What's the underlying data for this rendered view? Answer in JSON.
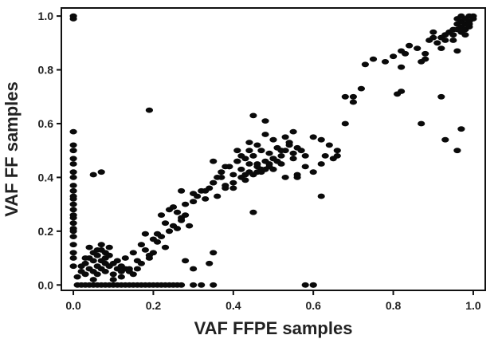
{
  "chart_data": {
    "type": "scatter",
    "title": "",
    "xlabel": "VAF FFPE samples",
    "ylabel": "VAF FF samples",
    "xlim": [
      -0.03,
      1.03
    ],
    "ylim": [
      -0.02,
      1.03
    ],
    "xticks": [
      "0.0",
      "0.2",
      "0.4",
      "0.6",
      "0.8",
      "1.0"
    ],
    "yticks": [
      "0.0",
      "0.2",
      "0.4",
      "0.6",
      "0.8",
      "1.0"
    ],
    "grid": false,
    "legend": "none",
    "marker_color": "#0a0a0a",
    "series": [
      {
        "x": [
          0.0,
          0.0,
          0.0,
          0.0,
          0.0,
          0.0,
          0.0,
          0.0,
          0.0,
          0.0,
          0.0,
          0.0,
          0.0,
          0.0,
          0.0,
          0.0,
          0.0,
          0.0,
          0.0,
          0.0,
          0.0,
          0.0,
          0.0,
          0.0,
          0.0,
          0.01,
          0.02,
          0.03,
          0.04,
          0.05,
          0.06,
          0.07,
          0.08,
          0.09,
          0.1,
          0.11,
          0.12,
          0.13,
          0.14,
          0.15,
          0.16,
          0.17,
          0.18,
          0.19,
          0.2,
          0.21,
          0.22,
          0.23,
          0.24,
          0.25,
          0.26,
          0.27,
          0.3,
          0.32,
          0.35,
          0.6,
          0.01,
          0.02,
          0.02,
          0.03,
          0.03,
          0.04,
          0.04,
          0.05,
          0.05,
          0.05,
          0.06,
          0.06,
          0.06,
          0.07,
          0.07,
          0.07,
          0.08,
          0.08,
          0.08,
          0.09,
          0.09,
          0.1,
          0.1,
          0.11,
          0.11,
          0.12,
          0.12,
          0.13,
          0.14,
          0.15,
          0.16,
          0.04,
          0.06,
          0.08,
          0.03,
          0.07,
          0.09,
          0.05,
          0.1,
          0.12,
          0.13,
          0.15,
          0.17,
          0.18,
          0.2,
          0.21,
          0.22,
          0.24,
          0.25,
          0.17,
          0.19,
          0.23,
          0.14,
          0.16,
          0.2,
          0.22,
          0.27,
          0.24,
          0.26,
          0.28,
          0.3,
          0.31,
          0.29,
          0.26,
          0.21,
          0.23,
          0.18,
          0.19,
          0.28,
          0.3,
          0.32,
          0.33,
          0.34,
          0.35,
          0.25,
          0.27,
          0.33,
          0.35,
          0.36,
          0.37,
          0.38,
          0.39,
          0.4,
          0.41,
          0.42,
          0.43,
          0.44,
          0.45,
          0.46,
          0.47,
          0.48,
          0.49,
          0.5,
          0.51,
          0.52,
          0.53,
          0.54,
          0.55,
          0.56,
          0.57,
          0.58,
          0.36,
          0.38,
          0.4,
          0.42,
          0.44,
          0.46,
          0.48,
          0.5,
          0.52,
          0.54,
          0.39,
          0.41,
          0.43,
          0.45,
          0.47,
          0.49,
          0.51,
          0.53,
          0.37,
          0.42,
          0.44,
          0.46,
          0.48,
          0.5,
          0.4,
          0.43,
          0.45,
          0.47,
          0.49,
          0.52,
          0.55,
          0.41,
          0.44,
          0.46,
          0.35,
          0.38,
          0.5,
          0.53,
          0.56,
          0.6,
          0.62,
          0.64,
          0.66,
          0.63,
          0.65,
          0.58,
          0.6,
          0.62,
          0.55,
          0.68,
          0.35,
          0.3,
          0.28,
          0.45,
          0.48,
          0.62,
          0.68,
          0.7,
          0.72,
          0.73,
          0.7,
          0.75,
          0.78,
          0.8,
          0.82,
          0.84,
          0.86,
          0.87,
          0.88,
          0.9,
          0.91,
          0.92,
          0.93,
          0.95,
          0.88,
          0.83,
          0.82,
          0.89,
          0.9,
          0.92,
          0.96,
          0.96,
          0.97,
          0.98,
          0.99,
          1.0,
          0.97,
          0.98,
          0.99,
          1.0,
          0.96,
          0.98,
          0.99,
          0.94,
          0.95,
          0.97,
          0.93,
          0.99,
          0.98,
          0.92,
          0.95,
          0.96,
          0.97,
          0.81,
          0.82,
          0.87,
          0.92,
          0.93,
          0.96,
          0.97,
          0.05,
          0.07,
          0.19,
          0.66,
          0.56,
          0.45,
          0.34,
          0.27,
          0.58,
          0.6
        ],
        "y": [
          1.0,
          0.99,
          0.57,
          0.52,
          0.5,
          0.47,
          0.45,
          0.42,
          0.4,
          0.37,
          0.35,
          0.33,
          0.32,
          0.3,
          0.28,
          0.26,
          0.25,
          0.23,
          0.21,
          0.2,
          0.18,
          0.15,
          0.12,
          0.1,
          0.07,
          0.0,
          0.0,
          0.0,
          0.0,
          0.0,
          0.0,
          0.0,
          0.0,
          0.0,
          0.0,
          0.0,
          0.0,
          0.0,
          0.0,
          0.0,
          0.0,
          0.0,
          0.0,
          0.0,
          0.0,
          0.0,
          0.0,
          0.0,
          0.0,
          0.0,
          0.0,
          0.0,
          0.0,
          0.0,
          0.0,
          0.0,
          0.03,
          0.05,
          0.07,
          0.04,
          0.08,
          0.06,
          0.1,
          0.05,
          0.09,
          0.12,
          0.04,
          0.07,
          0.11,
          0.06,
          0.09,
          0.13,
          0.05,
          0.08,
          0.1,
          0.07,
          0.11,
          0.04,
          0.08,
          0.06,
          0.09,
          0.05,
          0.07,
          0.06,
          0.05,
          0.04,
          0.06,
          0.14,
          0.13,
          0.12,
          0.1,
          0.15,
          0.14,
          0.02,
          0.02,
          0.03,
          0.1,
          0.12,
          0.15,
          0.13,
          0.17,
          0.19,
          0.18,
          0.2,
          0.22,
          0.08,
          0.1,
          0.23,
          0.06,
          0.09,
          0.12,
          0.26,
          0.25,
          0.28,
          0.27,
          0.3,
          0.31,
          0.33,
          0.22,
          0.21,
          0.16,
          0.14,
          0.19,
          0.11,
          0.26,
          0.34,
          0.35,
          0.32,
          0.36,
          0.38,
          0.29,
          0.24,
          0.35,
          0.38,
          0.4,
          0.42,
          0.37,
          0.44,
          0.41,
          0.46,
          0.43,
          0.47,
          0.45,
          0.48,
          0.44,
          0.5,
          0.46,
          0.49,
          0.47,
          0.51,
          0.48,
          0.5,
          0.52,
          0.49,
          0.51,
          0.5,
          0.48,
          0.33,
          0.36,
          0.38,
          0.4,
          0.42,
          0.45,
          0.43,
          0.47,
          0.5,
          0.53,
          0.44,
          0.46,
          0.41,
          0.48,
          0.42,
          0.44,
          0.46,
          0.55,
          0.4,
          0.48,
          0.5,
          0.52,
          0.56,
          0.54,
          0.36,
          0.39,
          0.41,
          0.43,
          0.45,
          0.45,
          0.47,
          0.5,
          0.53,
          0.42,
          0.46,
          0.44,
          0.43,
          0.4,
          0.41,
          0.55,
          0.54,
          0.52,
          0.5,
          0.48,
          0.47,
          0.44,
          0.42,
          0.45,
          0.57,
          0.6,
          0.12,
          0.06,
          0.09,
          0.63,
          0.61,
          0.33,
          0.7,
          0.7,
          0.73,
          0.82,
          0.68,
          0.84,
          0.83,
          0.85,
          0.87,
          0.89,
          0.88,
          0.83,
          0.86,
          0.92,
          0.9,
          0.88,
          0.93,
          0.95,
          0.84,
          0.86,
          0.81,
          0.91,
          0.94,
          0.92,
          0.87,
          0.97,
          0.98,
          0.99,
          1.0,
          0.99,
          0.96,
          0.97,
          0.98,
          1.0,
          0.99,
          0.95,
          0.96,
          0.94,
          0.93,
          1.0,
          0.91,
          0.97,
          0.93,
          0.92,
          0.91,
          0.95,
          0.94,
          0.71,
          0.72,
          0.6,
          0.7,
          0.54,
          0.5,
          0.58,
          0.41,
          0.42,
          0.65,
          0.48,
          0.4,
          0.27,
          0.08,
          0.35,
          0.0,
          0.0
        ]
      }
    ]
  }
}
